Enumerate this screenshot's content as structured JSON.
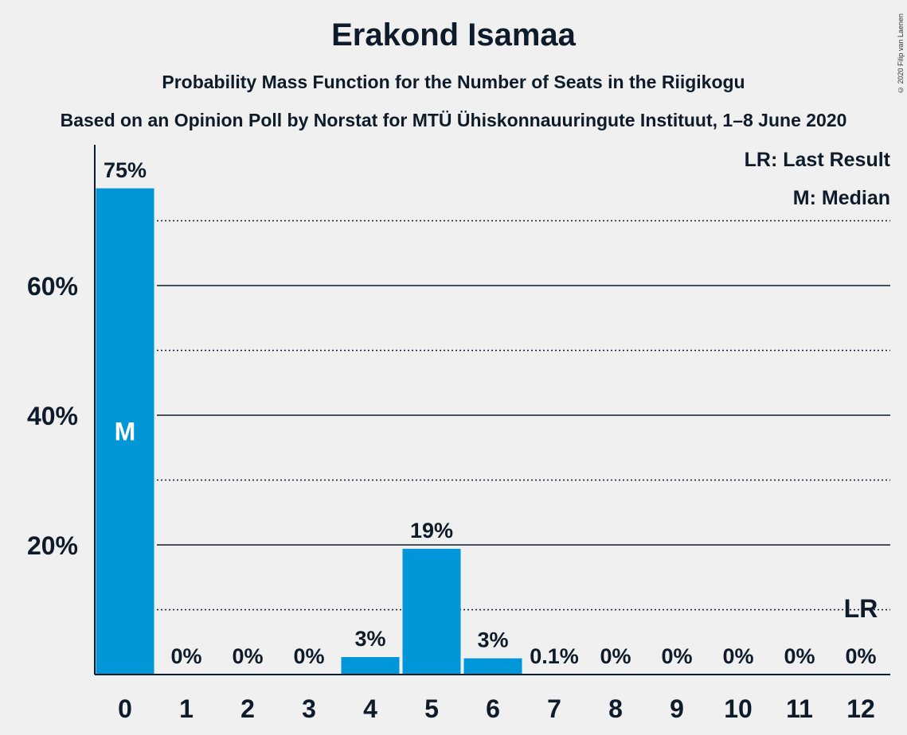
{
  "header": {
    "title": "Erakond Isamaa",
    "subtitle": "Probability Mass Function for the Number of Seats in the Riigikogu",
    "subtitle2": "Based on an Opinion Poll by Norstat for MTÜ Ühiskonnauuringute Instituut, 1–8 June 2020",
    "copyright": "© 2020 Filip van Laenen"
  },
  "legend": {
    "last_result": "LR: Last Result",
    "median": "M: Median"
  },
  "chart_data": {
    "type": "bar",
    "categories": [
      "0",
      "1",
      "2",
      "3",
      "4",
      "5",
      "6",
      "7",
      "8",
      "9",
      "10",
      "11",
      "12"
    ],
    "values": [
      75,
      0,
      0,
      0,
      2.7,
      19.4,
      2.5,
      0.1,
      0,
      0,
      0,
      0,
      0
    ],
    "value_labels": [
      "75%",
      "0%",
      "0%",
      "0%",
      "3%",
      "19%",
      "3%",
      "0.1%",
      "0%",
      "0%",
      "0%",
      "0%",
      "0%"
    ],
    "ylim": [
      0,
      81
    ],
    "yticks": [
      20,
      40,
      60
    ],
    "ytick_labels": [
      "20%",
      "40%",
      "60%"
    ],
    "minor_gridlines": [
      10,
      30,
      50,
      70
    ],
    "median_category": "0",
    "median_marker": "M",
    "last_result_category": "12",
    "last_result_marker": "LR",
    "bar_color": "#0096d8",
    "grid": true,
    "legend_position": "top-right"
  }
}
